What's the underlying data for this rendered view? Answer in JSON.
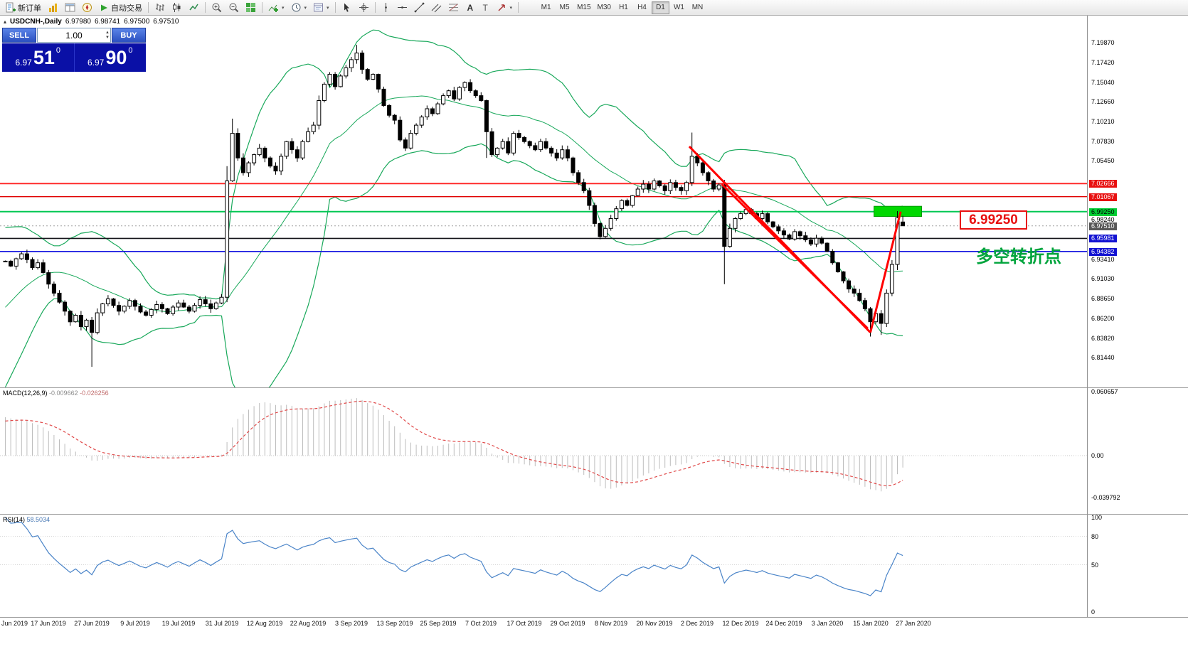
{
  "toolbar": {
    "new_order_label": "新订单",
    "auto_trading_label": "自动交易",
    "timeframes": [
      "M1",
      "M5",
      "M15",
      "M30",
      "H1",
      "H4",
      "D1",
      "W1",
      "MN"
    ],
    "active_timeframe": "D1",
    "icons": [
      "new-order-icon",
      "market-watch-icon",
      "data-window-icon",
      "navigator-icon",
      "auto-trading-icon",
      "bar-chart-icon",
      "candlestick-chart-icon",
      "line-chart-icon",
      "zoom-in-icon",
      "zoom-out-icon",
      "tile-windows-icon",
      "indicators-icon",
      "periods-icon",
      "templates-icon",
      "cursor-icon",
      "crosshair-icon",
      "vertical-line-icon",
      "horizontal-line-icon",
      "trendline-icon",
      "channel-icon",
      "fibonacci-icon",
      "text-icon",
      "arrow-tool-icon"
    ]
  },
  "chart_header": {
    "title": "USDCNH-,Daily",
    "open": "6.97980",
    "high": "6.98741",
    "low": "6.97500",
    "close": "6.97510"
  },
  "one_click_trading": {
    "sell_label": "SELL",
    "buy_label": "BUY",
    "volume": "1.00",
    "sell_big": "6.97",
    "sell_pips": "51",
    "sell_pt": "0",
    "buy_big": "6.97",
    "buy_pips": "90",
    "buy_pt": "0"
  },
  "indicators": {
    "macd_label": "MACD(12,26,9)",
    "macd_value": "-0.009662",
    "macd_signal_value": "-0.026256",
    "rsi_label": "RSI(14)",
    "rsi_value": "58.5034"
  },
  "annotations": {
    "price_callout": "6.99250",
    "turning_point_text": "多空转折点"
  },
  "price_axis": [
    {
      "t": "7.19870",
      "p": 7.1987,
      "s": "plain"
    },
    {
      "t": "7.17420",
      "p": 7.1742,
      "s": "plain"
    },
    {
      "t": "7.15040",
      "p": 7.1504,
      "s": "plain"
    },
    {
      "t": "7.12660",
      "p": 7.1266,
      "s": "plain"
    },
    {
      "t": "7.10210",
      "p": 7.1021,
      "s": "plain"
    },
    {
      "t": "7.07830",
      "p": 7.0783,
      "s": "plain"
    },
    {
      "t": "7.05450",
      "p": 7.0545,
      "s": "plain"
    },
    {
      "t": "7.02666",
      "p": 7.02666,
      "s": "red"
    },
    {
      "t": "7.01067",
      "p": 7.01067,
      "s": "red"
    },
    {
      "t": "6.99250",
      "p": 6.9925,
      "s": "green"
    },
    {
      "t": "6.98240",
      "p": 6.9824,
      "s": "plain"
    },
    {
      "t": "6.97510",
      "p": 6.9751,
      "s": "current"
    },
    {
      "t": "6.95981",
      "p": 6.95981,
      "s": "blue"
    },
    {
      "t": "6.94382",
      "p": 6.94382,
      "s": "blue"
    },
    {
      "t": "6.93410",
      "p": 6.9341,
      "s": "plain"
    },
    {
      "t": "6.91030",
      "p": 6.9103,
      "s": "plain"
    },
    {
      "t": "6.88650",
      "p": 6.8865,
      "s": "plain"
    },
    {
      "t": "6.86200",
      "p": 6.862,
      "s": "plain"
    },
    {
      "t": "6.83820",
      "p": 6.8382,
      "s": "plain"
    },
    {
      "t": "6.81440",
      "p": 6.8144,
      "s": "plain"
    }
  ],
  "macd_axis": [
    {
      "t": "0.060657",
      "v": 0.060657
    },
    {
      "t": "0.00",
      "v": 0
    },
    {
      "t": "-0.039792",
      "v": -0.039792
    }
  ],
  "rsi_axis": [
    {
      "t": "100",
      "v": 100
    },
    {
      "t": "80",
      "v": 80
    },
    {
      "t": "50",
      "v": 50
    },
    {
      "t": "0",
      "v": 0
    }
  ],
  "date_axis": [
    {
      "t": "Jun 2019",
      "i": 0
    },
    {
      "t": "17 Jun 2019",
      "i": 8
    },
    {
      "t": "27 Jun 2019",
      "i": 16
    },
    {
      "t": "9 Jul 2019",
      "i": 24
    },
    {
      "t": "19 Jul 2019",
      "i": 32
    },
    {
      "t": "31 Jul 2019",
      "i": 40
    },
    {
      "t": "12 Aug 2019",
      "i": 48
    },
    {
      "t": "22 Aug 2019",
      "i": 56
    },
    {
      "t": "3 Sep 2019",
      "i": 64
    },
    {
      "t": "13 Sep 2019",
      "i": 72
    },
    {
      "t": "25 Sep 2019",
      "i": 80
    },
    {
      "t": "7 Oct 2019",
      "i": 88
    },
    {
      "t": "17 Oct 2019",
      "i": 96
    },
    {
      "t": "29 Oct 2019",
      "i": 104
    },
    {
      "t": "8 Nov 2019",
      "i": 112
    },
    {
      "t": "20 Nov 2019",
      "i": 120
    },
    {
      "t": "2 Dec 2019",
      "i": 128
    },
    {
      "t": "12 Dec 2019",
      "i": 136
    },
    {
      "t": "24 Dec 2019",
      "i": 144
    },
    {
      "t": "3 Jan 2020",
      "i": 152
    },
    {
      "t": "15 Jan 2020",
      "i": 160
    },
    {
      "t": "27 Jan 2020",
      "i": 168
    }
  ],
  "chart_data": {
    "type": "candlestick",
    "symbol": "USDCNH",
    "period": "Daily",
    "bollinger": {
      "period": 20,
      "deviation": 2
    },
    "macd": {
      "fast": 12,
      "slow": 26,
      "signal": 9
    },
    "rsi": {
      "period": 14
    },
    "last_price": 6.9751,
    "pre_closes": [
      6.78,
      6.788,
      6.796,
      6.805,
      6.815,
      6.825,
      6.838,
      6.85,
      6.862,
      6.872,
      6.882,
      6.892,
      6.9,
      6.908,
      6.915,
      6.92,
      6.925,
      6.928,
      6.93,
      6.932
    ],
    "closes": [
      6.932,
      6.926,
      6.935,
      6.941,
      6.934,
      6.924,
      6.93,
      6.918,
      6.904,
      6.893,
      6.882,
      6.871,
      6.858,
      6.866,
      6.852,
      6.86,
      6.845,
      6.869,
      6.88,
      6.886,
      6.878,
      6.871,
      6.877,
      6.884,
      6.877,
      6.87,
      6.866,
      6.873,
      6.879,
      6.874,
      6.868,
      6.876,
      6.881,
      6.876,
      6.871,
      6.878,
      6.885,
      6.88,
      6.874,
      6.881,
      6.888,
      7.03,
      7.088,
      7.058,
      7.04,
      7.052,
      7.062,
      7.07,
      7.058,
      7.048,
      7.042,
      7.06,
      7.078,
      7.068,
      7.058,
      7.078,
      7.09,
      7.098,
      7.128,
      7.148,
      7.16,
      7.145,
      7.158,
      7.168,
      7.178,
      7.186,
      7.166,
      7.154,
      7.16,
      7.142,
      7.122,
      7.11,
      7.104,
      7.08,
      7.07,
      7.088,
      7.098,
      7.108,
      7.118,
      7.112,
      7.124,
      7.134,
      7.14,
      7.13,
      7.144,
      7.15,
      7.14,
      7.134,
      7.128,
      7.09,
      7.062,
      7.07,
      7.078,
      7.064,
      7.088,
      7.083,
      7.078,
      7.073,
      7.068,
      7.078,
      7.07,
      7.064,
      7.058,
      7.068,
      7.058,
      7.04,
      7.028,
      7.018,
      7.0,
      6.978,
      6.962,
      6.972,
      6.984,
      6.996,
      7.006,
      7.0,
      7.012,
      7.02,
      7.026,
      7.02,
      7.03,
      7.024,
      7.018,
      7.028,
      7.022,
      7.018,
      7.028,
      7.06,
      7.052,
      7.04,
      7.03,
      7.02,
      7.025,
      6.95,
      6.972,
      6.984,
      6.99,
      6.995,
      6.99,
      6.984,
      6.99,
      6.98,
      6.974,
      6.969,
      6.964,
      6.959,
      6.968,
      6.963,
      6.958,
      6.953,
      6.96,
      6.954,
      6.944,
      6.93,
      6.919,
      6.908,
      6.898,
      6.893,
      6.884,
      6.874,
      6.858,
      6.868,
      6.856,
      6.893,
      6.928,
      6.985,
      6.9751
    ],
    "overrides": {
      "16": {
        "l": 6.803
      },
      "41": {
        "h": 7.048,
        "l": 6.882
      },
      "42": {
        "h": 7.106
      },
      "65": {
        "h": 7.196
      },
      "89": {
        "l": 7.058
      },
      "127": {
        "h": 7.089
      },
      "133": {
        "l": 6.904
      },
      "160": {
        "l": 6.84
      },
      "162": {
        "l": 6.842
      },
      "165": {
        "h": 6.9931
      },
      "166": {
        "o": 6.9798,
        "h": 6.98741,
        "l": 6.975,
        "c": 6.9751
      }
    },
    "hlines": [
      {
        "p": 7.02666,
        "color": "#ff2a2a",
        "w": 2
      },
      {
        "p": 7.01067,
        "color": "#e00000",
        "w": 1.4
      },
      {
        "p": 6.9925,
        "color": "#00c853",
        "w": 2
      },
      {
        "p": 6.95981,
        "color": "#15151a",
        "w": 1.6
      },
      {
        "p": 6.94382,
        "color": "#1515e0",
        "w": 1.6
      }
    ],
    "trend_lines": [
      {
        "i1": 126.5,
        "p1": 7.072,
        "i2": 160,
        "p2": 6.845
      },
      {
        "i1": 132.5,
        "p1": 7.026,
        "i2": 159.5,
        "p2": 6.85
      },
      {
        "i1": 160,
        "p1": 6.845,
        "i2": 165.6,
        "p2": 6.9925
      }
    ],
    "green_box": {
      "i1": 161,
      "i2": 169.8,
      "p1": 6.999,
      "p2": 6.9865
    }
  }
}
